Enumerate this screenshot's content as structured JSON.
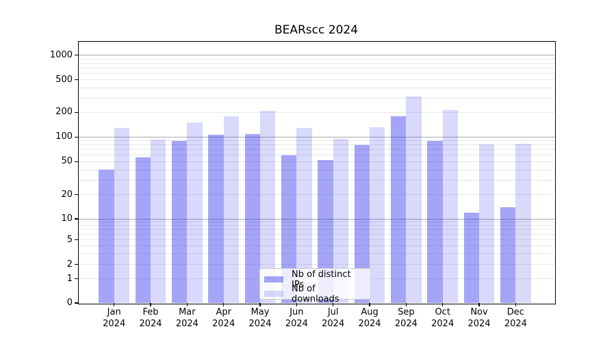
{
  "title": "BEARscc 2024",
  "chart_data": {
    "type": "bar",
    "title": "BEARscc 2024",
    "categories": [
      "Jan 2024",
      "Feb 2024",
      "Mar 2024",
      "Apr 2024",
      "May 2024",
      "Jun 2024",
      "Jul 2024",
      "Aug 2024",
      "Sep 2024",
      "Oct 2024",
      "Nov 2024",
      "Dec 2024"
    ],
    "series": [
      {
        "name": "Nb of distinct IPs",
        "color_hex": "#a6a6f2",
        "color_rgba": "rgba(40,40,235,0.42)",
        "values": [
          40,
          56,
          90,
          107,
          108,
          60,
          52,
          80,
          180,
          90,
          12,
          14
        ]
      },
      {
        "name": "Nb of downloads",
        "color_hex": "#dadaf9",
        "color_rgba": "rgba(40,40,235,0.175)",
        "values": [
          130,
          94,
          150,
          178,
          210,
          129,
          95,
          132,
          315,
          215,
          82,
          83
        ]
      }
    ],
    "xlabel": "",
    "ylabel": "",
    "yscale": "symlog",
    "yticks": [
      0,
      1,
      2,
      5,
      10,
      20,
      50,
      100,
      200,
      500,
      1000
    ],
    "ylim": [
      0,
      1450
    ],
    "grid": {
      "major_color": "#a8a8a8",
      "minor_color": "#e7e7e7",
      "grid_on": true
    },
    "legend_position": "lower center",
    "background": "#ffffff",
    "spine_color": "#000000"
  }
}
